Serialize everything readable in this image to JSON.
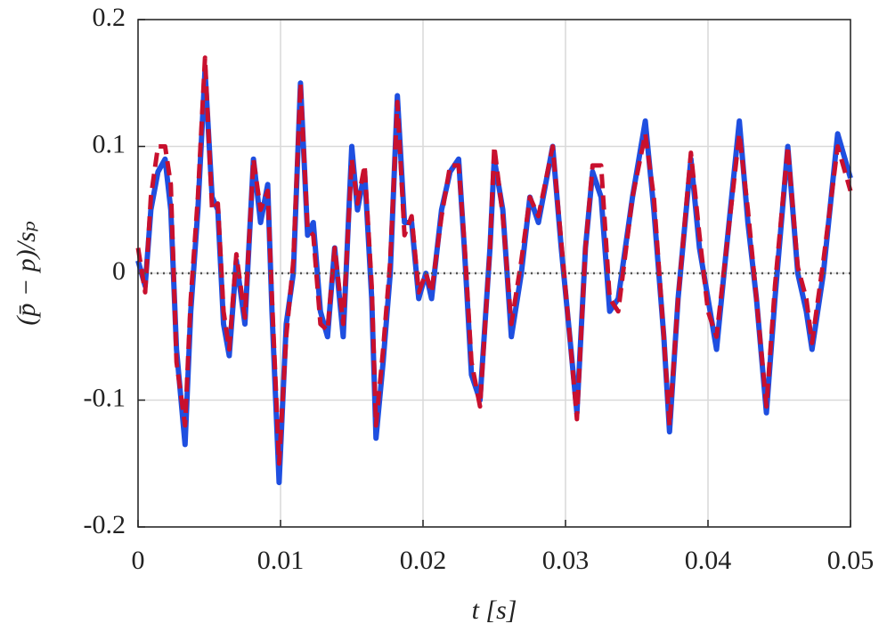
{
  "chart_data": {
    "type": "line",
    "xlabel": "t [s]",
    "ylabel": "(p̄ − p)/sₚ",
    "x": [
      0,
      0.0005,
      0.0009,
      0.0014,
      0.0019,
      0.0023,
      0.0027,
      0.0033,
      0.0037,
      0.0042,
      0.0047,
      0.0052,
      0.0056,
      0.006,
      0.0064,
      0.0069,
      0.0075,
      0.0081,
      0.0086,
      0.0091,
      0.0094,
      0.0099,
      0.0104,
      0.0109,
      0.0114,
      0.0119,
      0.0123,
      0.0128,
      0.0133,
      0.0138,
      0.0144,
      0.015,
      0.0154,
      0.0159,
      0.0164,
      0.0167,
      0.0172,
      0.0177,
      0.0182,
      0.0187,
      0.0192,
      0.0197,
      0.0202,
      0.0206,
      0.0213,
      0.0219,
      0.0225,
      0.0229,
      0.0234,
      0.024,
      0.0247,
      0.025,
      0.0256,
      0.0262,
      0.0269,
      0.0275,
      0.0281,
      0.0291,
      0.0297,
      0.0303,
      0.0308,
      0.0314,
      0.0319,
      0.0325,
      0.0331,
      0.0337,
      0.0347,
      0.0356,
      0.0362,
      0.0369,
      0.0373,
      0.0379,
      0.0388,
      0.0394,
      0.04,
      0.0406,
      0.0413,
      0.0422,
      0.0428,
      0.0434,
      0.0441,
      0.0447,
      0.0456,
      0.0463,
      0.0469,
      0.0473,
      0.0481,
      0.0491,
      0.05
    ],
    "series": [
      {
        "color": "#1f4fe0",
        "style": "solid",
        "values": [
          0.01,
          -0.01,
          0.05,
          0.08,
          0.09,
          0.05,
          -0.06,
          -0.135,
          -0.03,
          0.05,
          0.16,
          0.06,
          0.05,
          -0.04,
          -0.065,
          0.01,
          -0.04,
          0.09,
          0.04,
          0.07,
          -0.03,
          -0.165,
          -0.04,
          0.0,
          0.15,
          0.03,
          0.04,
          -0.03,
          -0.05,
          0.02,
          -0.05,
          0.1,
          0.05,
          0.08,
          -0.02,
          -0.13,
          -0.07,
          0.0,
          0.14,
          0.04,
          0.04,
          -0.02,
          0.0,
          -0.02,
          0.05,
          0.08,
          0.09,
          0.02,
          -0.08,
          -0.1,
          0.02,
          0.09,
          0.05,
          -0.05,
          0.0,
          0.06,
          0.04,
          0.1,
          0.02,
          -0.05,
          -0.11,
          0.02,
          0.08,
          0.06,
          -0.03,
          -0.02,
          0.06,
          0.12,
          0.05,
          -0.05,
          -0.125,
          -0.02,
          0.09,
          0.02,
          -0.02,
          -0.06,
          0.02,
          0.12,
          0.04,
          -0.02,
          -0.11,
          -0.02,
          0.1,
          0.0,
          -0.03,
          -0.06,
          0.0,
          0.11,
          0.075
        ]
      },
      {
        "color": "#c8102e",
        "style": "dashed",
        "values": [
          0.02,
          -0.015,
          0.06,
          0.1,
          0.1,
          0.07,
          -0.07,
          -0.12,
          -0.02,
          0.06,
          0.17,
          0.05,
          0.055,
          -0.03,
          -0.06,
          0.015,
          -0.035,
          0.09,
          0.05,
          0.065,
          -0.02,
          -0.15,
          -0.05,
          0.01,
          0.15,
          0.035,
          0.03,
          -0.04,
          -0.045,
          0.02,
          -0.04,
          0.09,
          0.055,
          0.085,
          -0.01,
          -0.12,
          -0.06,
          0.01,
          0.135,
          0.03,
          0.045,
          -0.015,
          0.0,
          -0.015,
          0.045,
          0.085,
          0.085,
          0.025,
          -0.07,
          -0.105,
          0.02,
          0.1,
          0.045,
          -0.04,
          0.01,
          0.06,
          0.045,
          0.1,
          0.025,
          -0.05,
          -0.115,
          0.02,
          0.085,
          0.085,
          -0.02,
          -0.03,
          0.06,
          0.11,
          0.06,
          -0.05,
          -0.12,
          -0.02,
          0.095,
          0.03,
          -0.03,
          -0.05,
          0.02,
          0.11,
          0.05,
          -0.02,
          -0.105,
          -0.01,
          0.1,
          0.005,
          -0.02,
          -0.055,
          0.01,
          0.1,
          0.065
        ]
      }
    ],
    "xlim": [
      0,
      0.05
    ],
    "xticks": [
      0,
      0.01,
      0.02,
      0.03,
      0.04,
      0.05
    ],
    "ylim": [
      -0.2,
      0.2
    ],
    "yticks": [
      -0.2,
      -0.1,
      0,
      0.1,
      0.2
    ],
    "grid": true,
    "reference_line": 0
  }
}
